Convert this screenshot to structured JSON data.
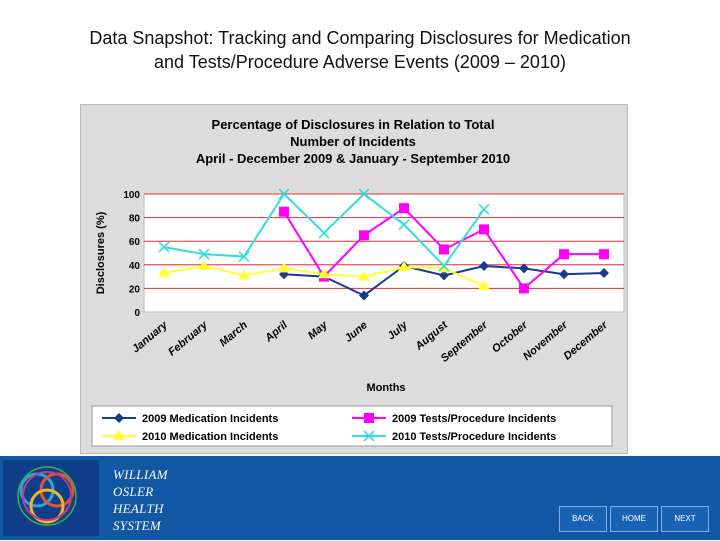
{
  "slide": {
    "title_line1": "Data Snapshot: Tracking and Comparing Disclosures for  Medication",
    "title_line2": "and Tests/Procedure Adverse Events (2009 – 2010)"
  },
  "chart_data": {
    "type": "line",
    "title_lines": [
      "Percentage of Disclosures in Relation to Total",
      "Number of Incidents",
      "April - December 2009 & January - September 2010"
    ],
    "xlabel": "Months",
    "ylabel": "Disclosures (%)",
    "ylim": [
      0,
      100
    ],
    "yticks": [
      0,
      20,
      40,
      60,
      80,
      100
    ],
    "grid": true,
    "legend_position": "bottom",
    "categories": [
      "January",
      "February",
      "March",
      "April",
      "May",
      "June",
      "July",
      "August",
      "September",
      "October",
      "November",
      "December"
    ],
    "series": [
      {
        "name": "2009 Medication Incidents",
        "color": "#1a3a8f",
        "marker": "diamond",
        "values": [
          null,
          null,
          null,
          32,
          30,
          14,
          39,
          31,
          39,
          37,
          32,
          33
        ]
      },
      {
        "name": "2009 Tests/Procedure Incidents",
        "color": "#ff00ff",
        "marker": "square",
        "values": [
          null,
          null,
          null,
          85,
          30,
          65,
          88,
          53,
          70,
          20,
          49,
          49
        ]
      },
      {
        "name": "2010 Medication Incidents",
        "color": "#ffff33",
        "marker": "triangle",
        "values": [
          33,
          39,
          31,
          37,
          32,
          30,
          38,
          37,
          22,
          null,
          null,
          null
        ]
      },
      {
        "name": "2010 Tests/Procedure Incidents",
        "color": "#33dddd",
        "marker": "x",
        "values": [
          55,
          49,
          47,
          100,
          67,
          100,
          74,
          39,
          87,
          null,
          null,
          null
        ]
      }
    ]
  },
  "footer": {
    "logo_lines": [
      "WILLIAM",
      "OSLER",
      "HEALTH",
      "SYSTEM"
    ],
    "back_label": "BACK",
    "home_label": "HOME",
    "next_label": "NEXT"
  }
}
